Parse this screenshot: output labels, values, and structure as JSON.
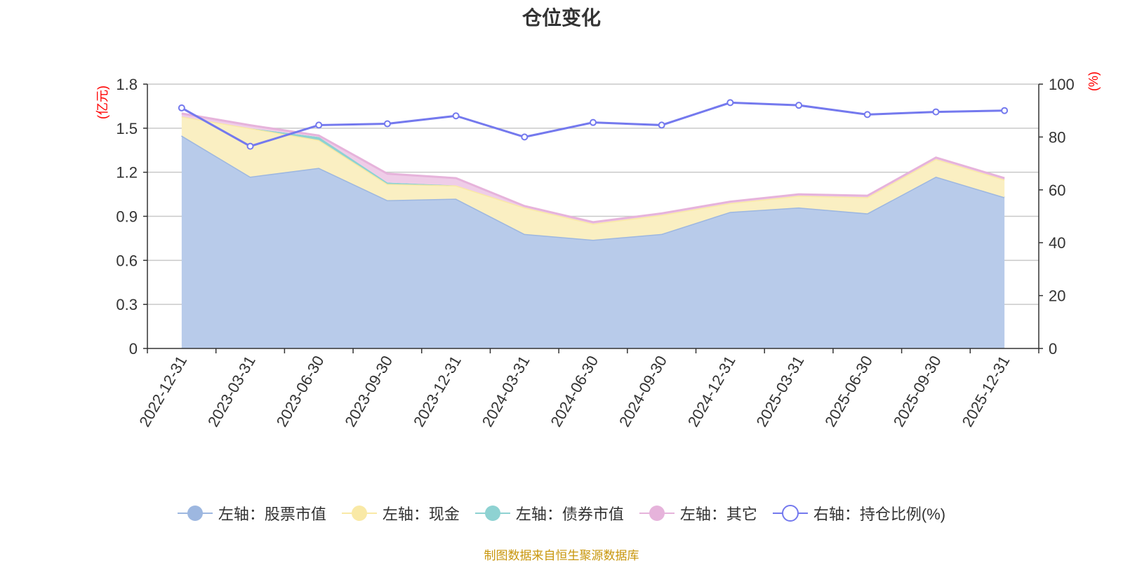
{
  "title": "仓位变化",
  "source_note": "制图数据来自恒生聚源数据库",
  "colors": {
    "stock": "#9db7e0",
    "stock_fill": "#b8cbea",
    "cash": "#f9e9a6",
    "cash_fill": "#faefc2",
    "bond": "#8ed2d2",
    "other": "#e6b3db",
    "other_fill": "#efcde8",
    "ratio": "#7479ee",
    "grid": "#c9c9c9",
    "axis": "#333333",
    "unit": "#ff0000"
  },
  "chart_data": {
    "type": "area",
    "title": "仓位变化",
    "categories": [
      "2022-12-31",
      "2023-03-31",
      "2023-06-30",
      "2023-09-30",
      "2023-12-31",
      "2024-03-31",
      "2024-06-30",
      "2024-09-30",
      "2024-12-31",
      "2025-03-31",
      "2025-06-30",
      "2025-09-30",
      "2025-12-31"
    ],
    "left_axis": {
      "unit": "(亿元)",
      "ylim": [
        0,
        1.8
      ],
      "ticks": [
        "0",
        "0.3",
        "0.6",
        "0.9",
        "1.2",
        "1.5",
        "1.8"
      ]
    },
    "right_axis": {
      "unit": "(%)",
      "ylim": [
        0,
        100
      ],
      "ticks": [
        "0",
        "20",
        "40",
        "60",
        "80",
        "100"
      ]
    },
    "series": [
      {
        "name": "左轴：股票市值",
        "axis": "left",
        "stack": true,
        "values": [
          1.45,
          1.17,
          1.23,
          1.01,
          1.02,
          0.78,
          0.74,
          0.78,
          0.93,
          0.96,
          0.92,
          1.17,
          1.03
        ]
      },
      {
        "name": "左轴：现金",
        "axis": "left",
        "stack": true,
        "values": [
          0.13,
          0.33,
          0.19,
          0.11,
          0.09,
          0.18,
          0.11,
          0.13,
          0.06,
          0.08,
          0.11,
          0.12,
          0.12
        ]
      },
      {
        "name": "左轴：债券市值",
        "axis": "left",
        "stack": true,
        "values": [
          0,
          0,
          0.02,
          0.01,
          0,
          0,
          0,
          0,
          0,
          0,
          0,
          0,
          0
        ]
      },
      {
        "name": "左轴：其它",
        "axis": "left",
        "stack": true,
        "values": [
          0.02,
          0.02,
          0.01,
          0.06,
          0.05,
          0.01,
          0.01,
          0.01,
          0.01,
          0.01,
          0.01,
          0.01,
          0.01
        ]
      },
      {
        "name": "右轴：持仓比例(%)",
        "axis": "right",
        "stack": false,
        "values": [
          91,
          76.5,
          84.5,
          85,
          88,
          80,
          85.5,
          84.5,
          93,
          92,
          88.5,
          89.5,
          90
        ]
      }
    ],
    "grid": true,
    "legend_position": "bottom"
  }
}
